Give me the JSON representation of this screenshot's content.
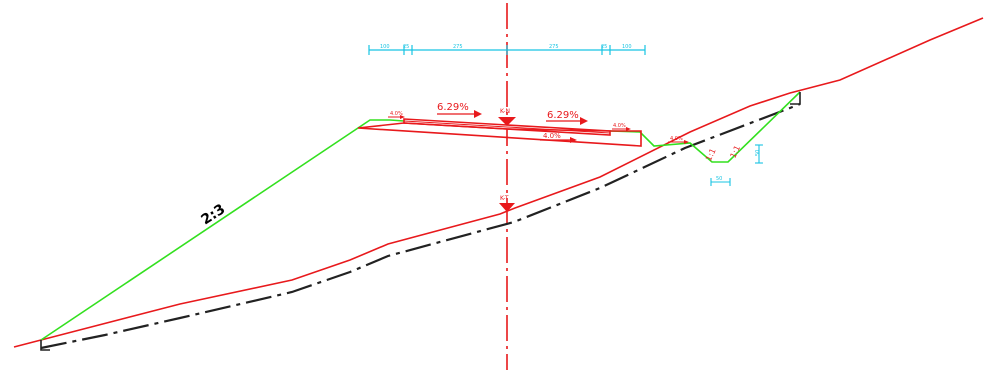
{
  "colors": {
    "ground": "#e8191c",
    "design": "#33e01f",
    "dimension": "#18c4e3",
    "subgrade": "#222222",
    "centerline": "#e8191c"
  },
  "slopes": {
    "fill_ratio": "2:3",
    "ditch_left": "1:1",
    "ditch_right": "1:1"
  },
  "crossfall": {
    "left": "6.29%",
    "right": "6.29%",
    "subgrade": "4.0%",
    "left_shoulder": "4.0%",
    "right_shoulder": "4.0%",
    "outer_right": "4.0%"
  },
  "markers": {
    "design_level": "K-N",
    "ground_level": "K-T"
  },
  "dimensions": {
    "top": [
      "100",
      "25",
      "275",
      "275",
      "25",
      "100"
    ],
    "ditch_width": "50",
    "ditch_depth": "50"
  }
}
